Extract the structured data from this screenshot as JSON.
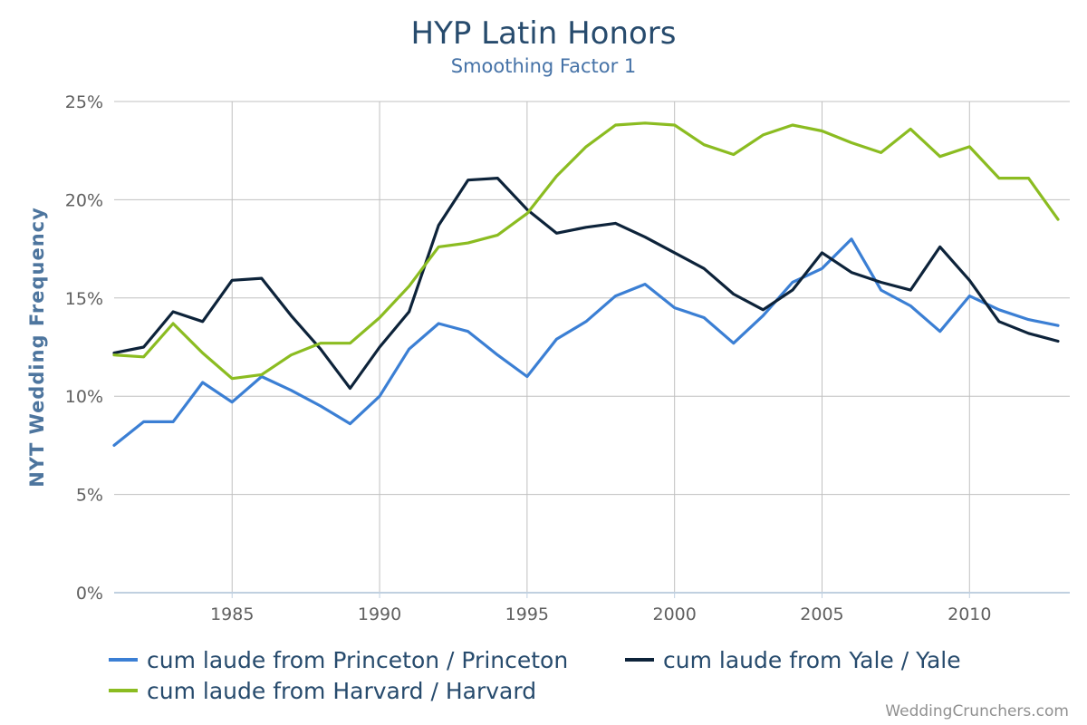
{
  "chart_data": {
    "type": "line",
    "title": "HYP Latin Honors",
    "subtitle": "Smoothing Factor 1",
    "xlabel": "",
    "ylabel": "NYT Wedding Frequency",
    "x": [
      1981,
      1982,
      1983,
      1984,
      1985,
      1986,
      1987,
      1988,
      1989,
      1990,
      1991,
      1992,
      1993,
      1994,
      1995,
      1996,
      1997,
      1998,
      1999,
      2000,
      2001,
      2002,
      2003,
      2004,
      2005,
      2006,
      2007,
      2008,
      2009,
      2010,
      2011,
      2012,
      2013
    ],
    "xlim": [
      1981,
      2013.4
    ],
    "ylim": [
      0,
      25
    ],
    "x_ticks": [
      "1985",
      "1990",
      "1995",
      "2000",
      "2005",
      "2010"
    ],
    "y_ticks": [
      "0%",
      "5%",
      "10%",
      "15%",
      "20%",
      "25%"
    ],
    "grid": true,
    "legend_position": "bottom-left",
    "series": [
      {
        "name": "cum laude from Princeton / Princeton",
        "color": "#3b7fd4",
        "values": [
          7.5,
          8.7,
          8.7,
          10.7,
          9.7,
          11.0,
          10.3,
          9.5,
          8.6,
          10.0,
          12.4,
          13.7,
          13.3,
          12.1,
          11.0,
          12.9,
          13.8,
          15.1,
          15.7,
          14.5,
          14.0,
          12.7,
          14.1,
          15.8,
          16.5,
          18.0,
          15.4,
          14.6,
          13.3,
          15.1,
          14.4,
          13.9,
          13.6
        ]
      },
      {
        "name": "cum laude from Yale / Yale",
        "color": "#0d233a",
        "values": [
          12.2,
          12.5,
          14.3,
          13.8,
          15.9,
          16.0,
          14.1,
          12.4,
          10.4,
          12.5,
          14.3,
          18.7,
          21.0,
          21.1,
          19.5,
          18.3,
          18.6,
          18.8,
          18.1,
          17.3,
          16.5,
          15.2,
          14.4,
          15.4,
          17.3,
          16.3,
          15.8,
          15.4,
          17.6,
          15.9,
          13.8,
          13.2,
          12.8
        ]
      },
      {
        "name": "cum laude from Harvard / Harvard",
        "color": "#8bbc21",
        "values": [
          12.1,
          12.0,
          13.7,
          12.2,
          10.9,
          11.1,
          12.1,
          12.7,
          12.7,
          14.0,
          15.6,
          17.6,
          17.8,
          18.2,
          19.3,
          21.2,
          22.7,
          23.8,
          23.9,
          23.8,
          22.8,
          22.3,
          23.3,
          23.8,
          23.5,
          22.9,
          22.4,
          23.6,
          22.2,
          22.7,
          21.1,
          21.1,
          19.0
        ]
      }
    ],
    "credits": "WeddingCrunchers.com"
  }
}
